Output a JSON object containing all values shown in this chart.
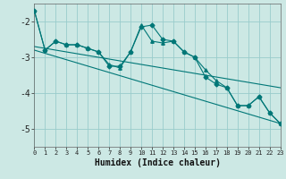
{
  "xlabel": "Humidex (Indice chaleur)",
  "bg_color": "#cce8e4",
  "grid_color": "#99cccc",
  "line_color": "#007777",
  "xlim": [
    0,
    23
  ],
  "ylim": [
    -5.5,
    -1.5
  ],
  "yticks": [
    -5,
    -4,
    -3,
    -2
  ],
  "xticks": [
    0,
    1,
    2,
    3,
    4,
    5,
    6,
    7,
    8,
    9,
    10,
    11,
    12,
    13,
    14,
    15,
    16,
    17,
    18,
    19,
    20,
    21,
    22,
    23
  ],
  "series1": [
    [
      0,
      -1.7
    ],
    [
      1,
      -2.8
    ],
    [
      2,
      -2.55
    ],
    [
      3,
      -2.65
    ],
    [
      4,
      -2.65
    ],
    [
      5,
      -2.75
    ],
    [
      6,
      -2.85
    ],
    [
      7,
      -3.25
    ],
    [
      8,
      -3.25
    ],
    [
      9,
      -2.85
    ],
    [
      10,
      -2.15
    ],
    [
      11,
      -2.1
    ],
    [
      12,
      -2.5
    ],
    [
      13,
      -2.55
    ],
    [
      14,
      -2.85
    ],
    [
      15,
      -3.0
    ],
    [
      16,
      -3.55
    ],
    [
      17,
      -3.75
    ],
    [
      18,
      -3.85
    ],
    [
      19,
      -4.35
    ],
    [
      20,
      -4.35
    ],
    [
      21,
      -4.1
    ],
    [
      22,
      -4.55
    ],
    [
      23,
      -4.85
    ]
  ],
  "series2": [
    [
      0,
      -1.7
    ],
    [
      1,
      -2.8
    ],
    [
      2,
      -2.55
    ],
    [
      3,
      -2.65
    ],
    [
      4,
      -2.65
    ],
    [
      5,
      -2.75
    ],
    [
      6,
      -2.85
    ],
    [
      7,
      -3.2
    ],
    [
      8,
      -3.3
    ],
    [
      9,
      -2.85
    ],
    [
      10,
      -2.1
    ],
    [
      11,
      -2.55
    ],
    [
      12,
      -2.6
    ],
    [
      13,
      -2.55
    ],
    [
      14,
      -2.85
    ],
    [
      15,
      -3.0
    ],
    [
      16,
      -3.35
    ],
    [
      17,
      -3.65
    ],
    [
      18,
      -3.85
    ],
    [
      19,
      -4.35
    ],
    [
      20,
      -4.35
    ],
    [
      21,
      -4.1
    ],
    [
      22,
      -4.55
    ],
    [
      23,
      -4.85
    ]
  ],
  "linear1": [
    [
      0,
      -2.7
    ],
    [
      23,
      -3.85
    ]
  ],
  "linear2": [
    [
      0,
      -2.8
    ],
    [
      23,
      -4.85
    ]
  ]
}
